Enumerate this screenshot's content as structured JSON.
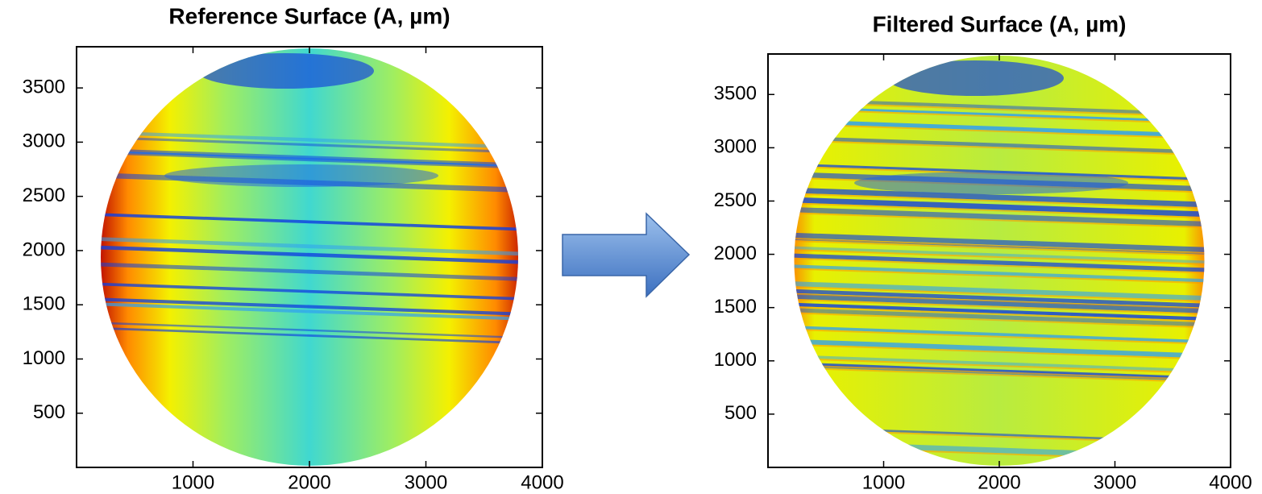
{
  "chart_data": [
    {
      "type": "image",
      "title": "Reference Surface (A, µm)",
      "xlim": [
        0,
        4000
      ],
      "ylim": [
        0,
        3880
      ],
      "xticks": [
        1000,
        2000,
        3000,
        4000
      ],
      "yticks": [
        500,
        1000,
        1500,
        2000,
        2500,
        3000,
        3500
      ]
    },
    {
      "type": "image",
      "title": "Filtered Surface (A, µm)",
      "xlim": [
        0,
        4000
      ],
      "ylim": [
        0,
        3880
      ],
      "xticks": [
        1000,
        2000,
        3000,
        4000
      ],
      "yticks": [
        500,
        1000,
        1500,
        2000,
        2500,
        3000,
        3500
      ]
    }
  ]
}
